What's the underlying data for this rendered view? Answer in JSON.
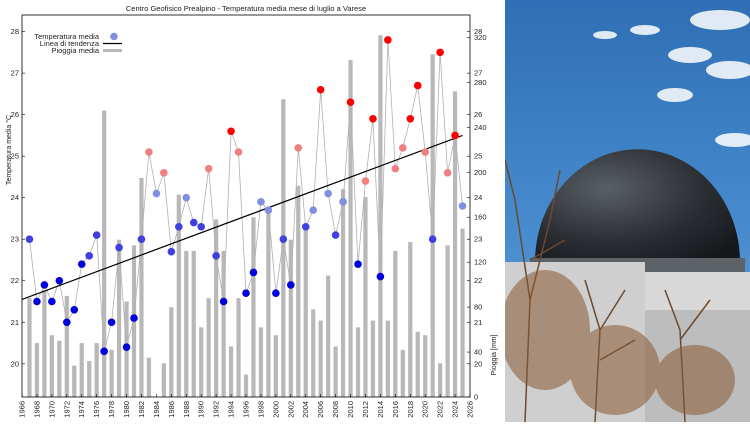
{
  "chart_data": {
    "type": "line",
    "title": "Centro Geofisico Prealpino - Temperatura media mese di luglio a Varese",
    "ylabel_left": "Temperatura media °C",
    "ylabel_right": "Pioggia [mm]",
    "xlim": [
      1966,
      2026
    ],
    "ylim_left": [
      19.2,
      28.4
    ],
    "ylim_right": [
      0,
      340
    ],
    "x_ticks": [
      "1966",
      "1968",
      "1970",
      "1972",
      "1974",
      "1976",
      "1978",
      "1980",
      "1982",
      "1984",
      "1986",
      "1988",
      "1990",
      "1992",
      "1994",
      "1996",
      "1998",
      "2000",
      "2002",
      "2004",
      "2006",
      "2008",
      "2010",
      "2012",
      "2014",
      "2016",
      "2018",
      "2020",
      "2022",
      "2024",
      "2026"
    ],
    "y_ticks_left": [
      "20",
      "21",
      "22",
      "23",
      "24",
      "25",
      "26",
      "27",
      "28"
    ],
    "y_ticks_right": [
      "0",
      "40",
      "80",
      "120",
      "160",
      "200",
      "240",
      "280",
      "320"
    ],
    "legend": [
      "Temperatura media",
      "Linea di tendenza",
      "Pioggia media"
    ],
    "legend_position": "top-left",
    "grid": false,
    "series": [
      {
        "name": "Temperatura media",
        "x": [
          1967,
          1968,
          1969,
          1970,
          1971,
          1972,
          1973,
          1974,
          1975,
          1976,
          1977,
          1978,
          1979,
          1980,
          1981,
          1982,
          1983,
          1984,
          1985,
          1986,
          1987,
          1988,
          1989,
          1990,
          1991,
          1992,
          1993,
          1994,
          1995,
          1996,
          1997,
          1998,
          1999,
          2000,
          2001,
          2002,
          2003,
          2004,
          2005,
          2006,
          2007,
          2008,
          2009,
          2010,
          2011,
          2012,
          2013,
          2014,
          2015,
          2016,
          2017,
          2018,
          2019,
          2020,
          2021,
          2022,
          2023,
          2024,
          2025
        ],
        "values": [
          23.0,
          21.5,
          21.9,
          21.5,
          22.0,
          21.0,
          21.3,
          22.4,
          22.6,
          23.1,
          20.3,
          21.0,
          22.8,
          20.4,
          21.1,
          23.0,
          25.1,
          24.1,
          24.6,
          22.7,
          23.3,
          24.0,
          23.4,
          23.3,
          24.7,
          22.6,
          21.5,
          25.6,
          25.1,
          21.7,
          22.2,
          23.9,
          23.7,
          21.7,
          23.0,
          21.9,
          25.2,
          23.3,
          23.7,
          26.6,
          24.1,
          23.1,
          23.9,
          26.3,
          22.4,
          24.4,
          25.9,
          22.1,
          27.8,
          24.7,
          25.2,
          25.9,
          26.7,
          25.1,
          23.0,
          27.5,
          24.6,
          25.5,
          23.8
        ]
      },
      {
        "name": "Linea di tendenza",
        "x": [
          1966,
          2025
        ],
        "values": [
          21.55,
          25.5
        ]
      },
      {
        "name": "Pioggia media",
        "x": [
          1967,
          1968,
          1969,
          1970,
          1971,
          1972,
          1973,
          1974,
          1975,
          1976,
          1977,
          1978,
          1979,
          1980,
          1981,
          1982,
          1983,
          1984,
          1985,
          1986,
          1987,
          1988,
          1989,
          1990,
          1991,
          1992,
          1993,
          1994,
          1995,
          1996,
          1997,
          1998,
          1999,
          2000,
          2001,
          2002,
          2003,
          2004,
          2005,
          2006,
          2007,
          2008,
          2009,
          2010,
          2011,
          2012,
          2013,
          2014,
          2015,
          2016,
          2017,
          2018,
          2019,
          2020,
          2021,
          2022,
          2023,
          2024,
          2025
        ],
        "values": [
          88,
          48,
          95,
          55,
          50,
          90,
          28,
          48,
          32,
          48,
          255,
          42,
          140,
          85,
          135,
          195,
          35,
          0,
          30,
          80,
          180,
          130,
          130,
          62,
          88,
          158,
          130,
          45,
          88,
          20,
          160,
          62,
          165,
          55,
          265,
          140,
          188,
          152,
          78,
          68,
          108,
          45,
          185,
          300,
          62,
          178,
          68,
          322,
          68,
          130,
          42,
          138,
          58,
          55,
          305,
          30,
          135,
          272,
          150
        ]
      }
    ],
    "colors": {
      "hot": "#ff0000",
      "warm": "#f08080",
      "neutral": "#b0b0b0",
      "cool": "#8090e0",
      "cold": "#0000dd",
      "trend": "#000000",
      "rain": "#b8b8b8",
      "connector": "#b0b0b0"
    }
  },
  "photo": {
    "subject": "observatory dome under blue sky with clouds and bare trees",
    "icons": [
      "observatory-dome",
      "cloud",
      "bare-tree"
    ]
  }
}
